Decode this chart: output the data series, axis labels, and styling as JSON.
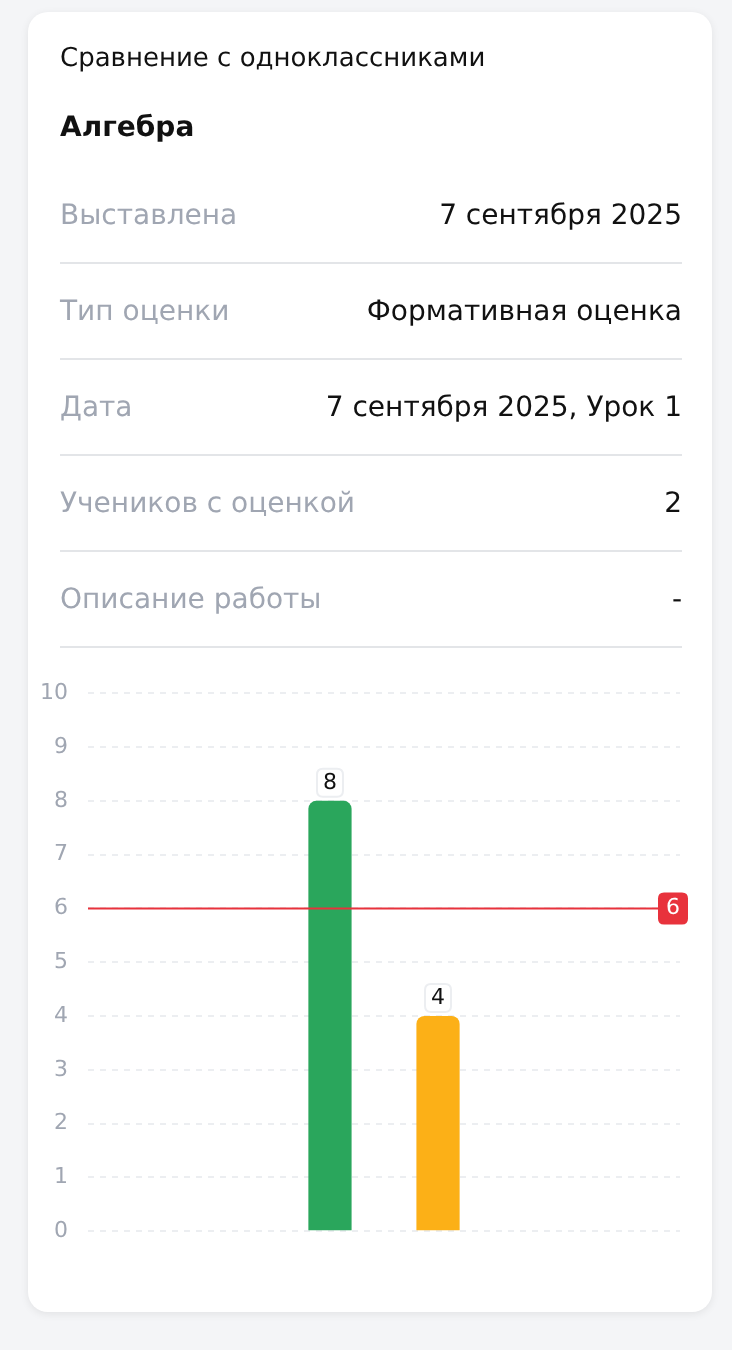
{
  "chart_data": {
    "type": "bar",
    "title": "Сравнение с одноклассниками",
    "subtitle": "Алгебра",
    "annotations": [
      "Выставлена",
      "7 сентября 2025",
      "Тип оценки",
      "Формативная оценка",
      "Дата",
      "7 сентября 2025, Урок 1",
      "Учеников с оценкой",
      "2",
      "Описание работы",
      "-"
    ],
    "categories": [
      null
    ],
    "series": [
      {
        "color": "#2aa65c",
        "values": [
          8
        ]
      },
      {
        "color": "#fcb017",
        "values": [
          4
        ]
      }
    ],
    "ylim": [
      0,
      10
    ],
    "yticks": [
      0,
      1,
      2,
      3,
      4,
      5,
      6,
      7,
      8,
      9,
      10
    ],
    "grid": "y",
    "data_labels": true,
    "legend": false,
    "ref_lines": [
      {
        "axis": "y",
        "value": 6,
        "label": "6",
        "color": "#e8323c"
      }
    ]
  }
}
